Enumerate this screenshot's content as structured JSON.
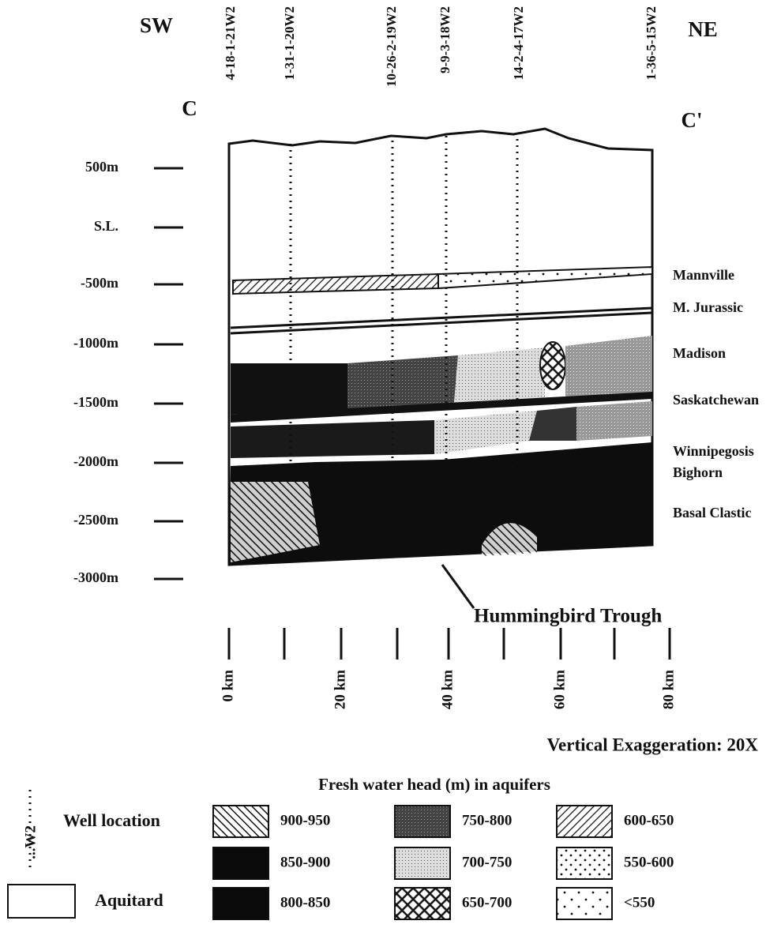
{
  "header": {
    "left_direction": "SW",
    "right_direction": "NE",
    "left_section": "C",
    "right_section": "C'"
  },
  "wells": [
    "4-18-1-21W2",
    "1-31-1-20W2",
    "10-26-2-19W2",
    "9-9-3-18W2",
    "14-2-4-17W2",
    "1-36-5-15W2"
  ],
  "depth_axis": [
    "500m",
    "S.L.",
    "-500m",
    "-1000m",
    "-1500m",
    "-2000m",
    "-2500m",
    "-3000m"
  ],
  "formations": [
    "Mannville",
    "M. Jurassic",
    "Madison",
    "Saskatchewan",
    "Winnipegosis",
    "Bighorn",
    "Basal Clastic"
  ],
  "annotation": "Hummingbird Trough",
  "distance_axis": [
    "0 km",
    "20 km",
    "40 km",
    "60 km",
    "80 km"
  ],
  "vertical_exaggeration": "Vertical Exaggeration: 20X",
  "legend": {
    "title": "Fresh water head (m) in aquifers",
    "well_symbol": "...W2",
    "well_location": "Well location",
    "aquitard": "Aquitard",
    "items": [
      "900-950",
      "850-900",
      "800-850",
      "750-800",
      "700-750",
      "650-700",
      "600-650",
      "550-600",
      "<550"
    ]
  }
}
